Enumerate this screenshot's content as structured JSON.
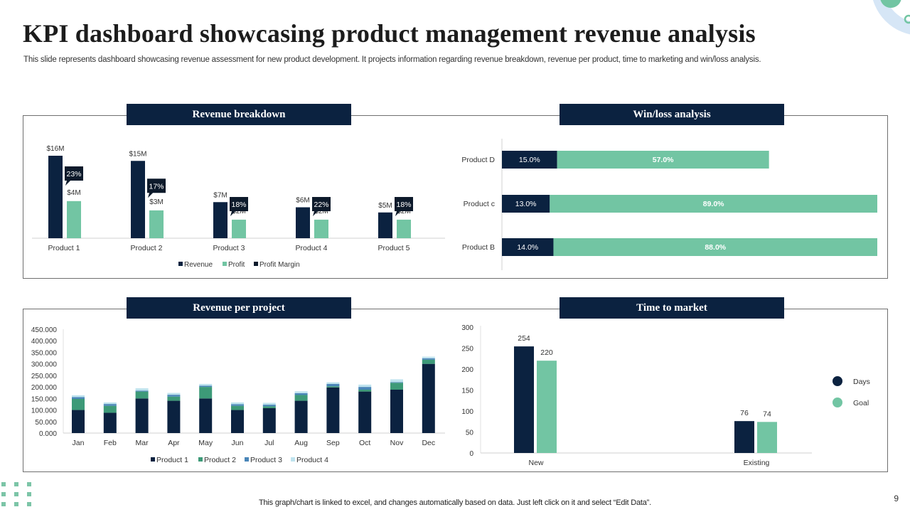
{
  "slide": {
    "title": "KPI dashboard showcasing product management revenue analysis",
    "subtitle": "This slide represents dashboard showcasing revenue assessment for new product development. It projects information regarding revenue breakdown, revenue per product, time to  marketing and win/loss analysis.",
    "footer_note": "This graph/chart is linked to excel,  and changes automatically based on data. Just left click on it and select “Edit Data”.",
    "page_number": "9"
  },
  "sections": {
    "revenue_breakdown": "Revenue breakdown",
    "win_loss": "Win/loss analysis",
    "revenue_per_project": "Revenue per project",
    "time_to_market": "Time to market"
  },
  "colors": {
    "navy": "#0b2240",
    "green": "#72c5a3",
    "teal": "#3d9a78",
    "blue": "#4a86b8",
    "light_blue": "#bfe3ee"
  },
  "chart_data": [
    {
      "id": "revenue_breakdown",
      "type": "bar",
      "title": "Revenue breakdown",
      "categories": [
        "Product 1",
        "Product 2",
        "Product 3",
        "Product 4",
        "Product 5"
      ],
      "series": [
        {
          "name": "Revenue",
          "values": [
            16,
            15,
            7,
            6,
            5
          ],
          "labels": [
            "$16M",
            "$15M",
            "$7M",
            "$6M",
            "$5M"
          ]
        },
        {
          "name": "Profit",
          "values": [
            4,
            3,
            2,
            2,
            2
          ],
          "labels": [
            "$4M",
            "$3M",
            "$2M",
            "$2M",
            "$2M"
          ]
        },
        {
          "name": "Profit Margin",
          "values": [
            23,
            17,
            18,
            22,
            18
          ],
          "labels": [
            "23%",
            "17%",
            "18%",
            "22%",
            "18%"
          ]
        }
      ],
      "legend": [
        "Revenue",
        "Profit",
        "Profit Margin"
      ],
      "legend_position": "bottom",
      "ylim": [
        0,
        17
      ]
    },
    {
      "id": "win_loss",
      "type": "bar",
      "orientation": "horizontal",
      "stacked": true,
      "title": "Win/loss analysis",
      "categories": [
        "Product D",
        "Product c",
        "Product B"
      ],
      "series": [
        {
          "name": "Loss",
          "values": [
            15.0,
            13.0,
            14.0
          ],
          "labels": [
            "15.0%",
            "13.0%",
            "14.0%"
          ]
        },
        {
          "name": "Win",
          "values": [
            57.0,
            89.0,
            88.0
          ],
          "labels": [
            "57.0%",
            "89.0%",
            "88.0%"
          ]
        }
      ],
      "xlim": [
        0,
        102
      ]
    },
    {
      "id": "revenue_per_project",
      "type": "bar",
      "stacked": true,
      "title": "Revenue per project",
      "categories": [
        "Jan",
        "Feb",
        "Mar",
        "Apr",
        "May",
        "Jun",
        "Jul",
        "Aug",
        "Sep",
        "Oct",
        "Nov",
        "Dec"
      ],
      "series": [
        {
          "name": "Product 1",
          "values": [
            100,
            88,
            150,
            140,
            150,
            100,
            108,
            140,
            198,
            180,
            188,
            300
          ]
        },
        {
          "name": "Product 2",
          "values": [
            48,
            30,
            30,
            18,
            50,
            18,
            8,
            25,
            5,
            8,
            30,
            18
          ]
        },
        {
          "name": "Product 3",
          "values": [
            8,
            8,
            4,
            8,
            5,
            7,
            7,
            8,
            10,
            12,
            3,
            6
          ]
        },
        {
          "name": "Product 4",
          "values": [
            8,
            7,
            10,
            8,
            8,
            8,
            8,
            8,
            7,
            10,
            12,
            7
          ]
        }
      ],
      "y_ticks": [
        "0.000",
        "50.000",
        "100.000",
        "150.000",
        "200.000",
        "250.000",
        "300.000",
        "350.000",
        "400.000",
        "450.000"
      ],
      "ylim": [
        0,
        450
      ],
      "legend": [
        "Product 1",
        "Product 2",
        "Product 3",
        "Product 4"
      ],
      "legend_position": "bottom"
    },
    {
      "id": "time_to_market",
      "type": "bar",
      "title": "Time to market",
      "categories": [
        "New",
        "Existing"
      ],
      "series": [
        {
          "name": "Days",
          "values": [
            254,
            76
          ]
        },
        {
          "name": "Goal",
          "values": [
            220,
            74
          ]
        }
      ],
      "y_ticks": [
        "0",
        "50",
        "100",
        "150",
        "200",
        "250",
        "300"
      ],
      "ylim": [
        0,
        300
      ],
      "legend": [
        "Days",
        "Goal"
      ],
      "legend_position": "right"
    }
  ]
}
